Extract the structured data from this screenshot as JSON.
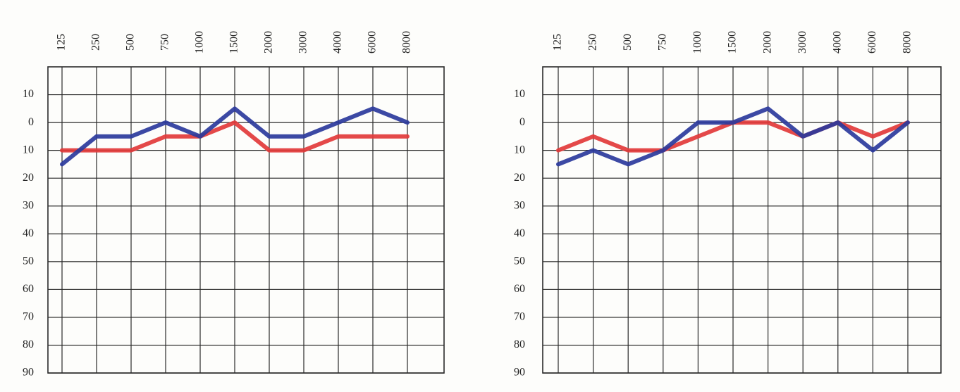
{
  "chart_data": [
    {
      "type": "line",
      "categories": [
        "125",
        "250",
        "500",
        "750",
        "1000",
        "1500",
        "2000",
        "3000",
        "4000",
        "6000",
        "8000"
      ],
      "series": [
        {
          "name": null,
          "color": "#e23a3a",
          "values": [
            10,
            10,
            10,
            5,
            5,
            0,
            10,
            10,
            5,
            5,
            5
          ]
        },
        {
          "name": null,
          "color": "#2b3a9c",
          "values": [
            15,
            5,
            5,
            0,
            5,
            -5,
            5,
            5,
            0,
            -5,
            0
          ]
        }
      ],
      "ylim": [
        -20,
        90
      ],
      "y_reversed": true,
      "yticks": [
        {
          "value": -10,
          "label": "10"
        },
        0,
        10,
        20,
        30,
        40,
        50,
        60,
        70,
        80,
        90
      ],
      "grid": true
    },
    {
      "type": "line",
      "categories": [
        "125",
        "250",
        "500",
        "750",
        "1000",
        "1500",
        "2000",
        "3000",
        "4000",
        "6000",
        "8000"
      ],
      "series": [
        {
          "name": null,
          "color": "#e23a3a",
          "values": [
            10,
            5,
            10,
            10,
            5,
            0,
            0,
            5,
            0,
            5,
            0
          ]
        },
        {
          "name": null,
          "color": "#2b3a9c",
          "values": [
            15,
            10,
            15,
            10,
            0,
            0,
            -5,
            5,
            0,
            10,
            0
          ]
        }
      ],
      "ylim": [
        -20,
        90
      ],
      "y_reversed": true,
      "yticks": [
        {
          "value": -10,
          "label": "10"
        },
        0,
        10,
        20,
        30,
        40,
        50,
        60,
        70,
        80,
        90
      ],
      "grid": true
    }
  ]
}
